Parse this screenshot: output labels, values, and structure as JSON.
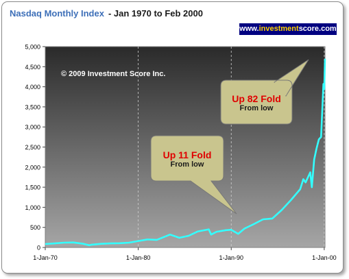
{
  "header": {
    "title": "Nasdaq Monthly Index",
    "subtitle": "- Jan 1970 to Feb 2000",
    "url_prefix": "www.",
    "url_highlight": "investment",
    "url_suffix": "score.com",
    "copyright": "© 2009 Investment Score Inc."
  },
  "colors": {
    "title": "#3d6fb8",
    "line": "#33ffff",
    "plot_top": "#2a2a2a",
    "plot_bottom": "#a6a6a6",
    "callout_fill": "#c9c58e",
    "callout_text_highlight": "#e00000",
    "badge": "#000080"
  },
  "callouts": [
    {
      "line1": "Up 11 Fold",
      "line2": "From low"
    },
    {
      "line1": "Up 82 Fold",
      "line2": "From low"
    }
  ],
  "chart_data": {
    "type": "line",
    "title": "Nasdaq Monthly Index",
    "x_ticks": [
      "1-Jan-70",
      "1-Jan-80",
      "1-Jan-90",
      "1-Jan-00"
    ],
    "y_ticks": [
      "0",
      "500",
      "1,000",
      "1,500",
      "2,000",
      "2,500",
      "3,000",
      "3,500",
      "4,000",
      "4,500",
      "5,000"
    ],
    "ylim": [
      0,
      5000
    ],
    "xlim": [
      "1970-01",
      "2000-02"
    ],
    "grid": "vertical dashed at year ticks",
    "series": [
      {
        "values": [
          [
            "1970-01",
            85
          ],
          [
            "1971-01",
            100
          ],
          [
            "1972-01",
            120
          ],
          [
            "1973-01",
            125
          ],
          [
            "1974-01",
            95
          ],
          [
            "1974-10",
            55
          ],
          [
            "1975-01",
            70
          ],
          [
            "1976-01",
            90
          ],
          [
            "1977-01",
            100
          ],
          [
            "1978-01",
            105
          ],
          [
            "1979-01",
            120
          ],
          [
            "1980-01",
            160
          ],
          [
            "1981-01",
            200
          ],
          [
            "1982-01",
            190
          ],
          [
            "1983-06",
            320
          ],
          [
            "1984-06",
            240
          ],
          [
            "1985-06",
            290
          ],
          [
            "1986-06",
            400
          ],
          [
            "1987-08",
            450
          ],
          [
            "1987-11",
            320
          ],
          [
            "1988-06",
            390
          ],
          [
            "1989-06",
            430
          ],
          [
            "1990-01",
            440
          ],
          [
            "1990-10",
            340
          ],
          [
            "1991-06",
            470
          ],
          [
            "1992-06",
            580
          ],
          [
            "1993-06",
            700
          ],
          [
            "1994-06",
            720
          ],
          [
            "1995-06",
            930
          ],
          [
            "1996-06",
            1180
          ],
          [
            "1997-06",
            1450
          ],
          [
            "1997-10",
            1700
          ],
          [
            "1998-01",
            1620
          ],
          [
            "1998-07",
            1870
          ],
          [
            "1998-09",
            1500
          ],
          [
            "1998-12",
            2190
          ],
          [
            "1999-03",
            2460
          ],
          [
            "1999-06",
            2690
          ],
          [
            "1999-09",
            2750
          ],
          [
            "1999-12",
            4070
          ],
          [
            "2000-01",
            3940
          ],
          [
            "2000-02",
            4700
          ]
        ]
      }
    ]
  }
}
